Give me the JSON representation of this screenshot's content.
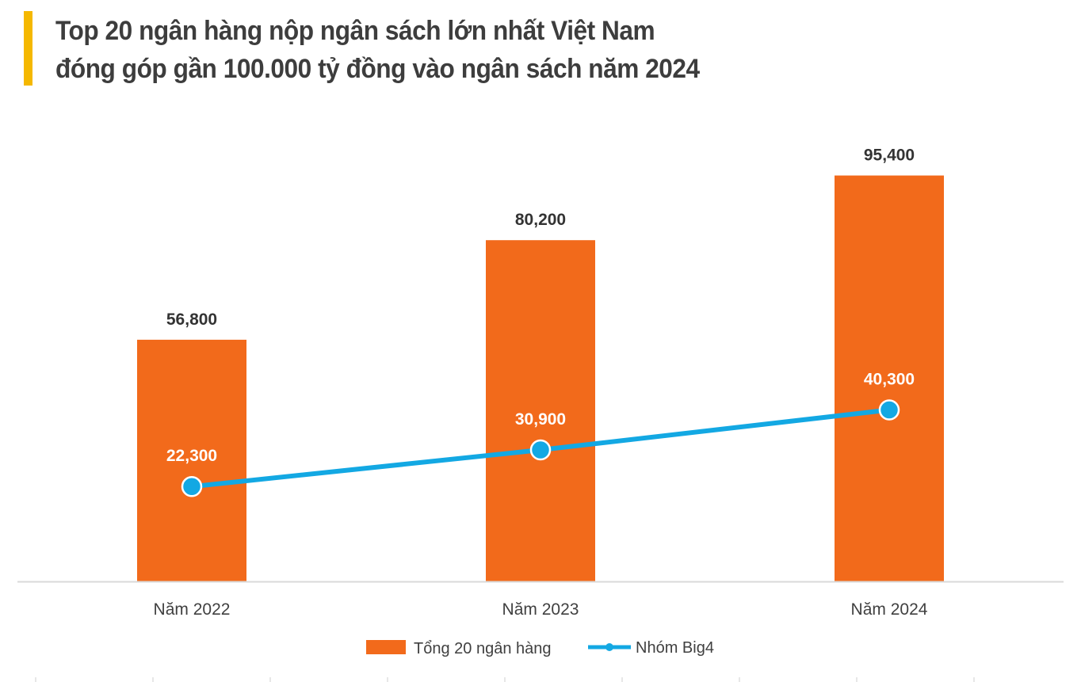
{
  "header": {
    "title_line1": "Top 20 ngân hàng nộp ngân sách lớn nhất Việt Nam",
    "title_line2": "đóng góp gần 100.000 tỷ đồng vào ngân sách năm 2024"
  },
  "colors": {
    "accent": "#f5b800",
    "bar": "#f26a1b",
    "line": "#13a8e3",
    "title": "#3d3d3d",
    "axis": "#d9d9d9"
  },
  "chart_data": {
    "type": "bar",
    "categories": [
      "Năm 2022",
      "Năm 2023",
      "Năm 2024"
    ],
    "series": [
      {
        "name": "Tổng 20 ngân hàng",
        "type": "bar",
        "values": [
          56800,
          80200,
          95400
        ],
        "labels": [
          "56,800",
          "80,200",
          "95,400"
        ]
      },
      {
        "name": "Nhóm Big4",
        "type": "line",
        "values": [
          22300,
          30900,
          40300
        ],
        "labels": [
          "22,300",
          "30,900",
          "40,300"
        ]
      }
    ],
    "ylim": [
      0,
      105000
    ],
    "grid": false,
    "legend": "bottom-center"
  }
}
